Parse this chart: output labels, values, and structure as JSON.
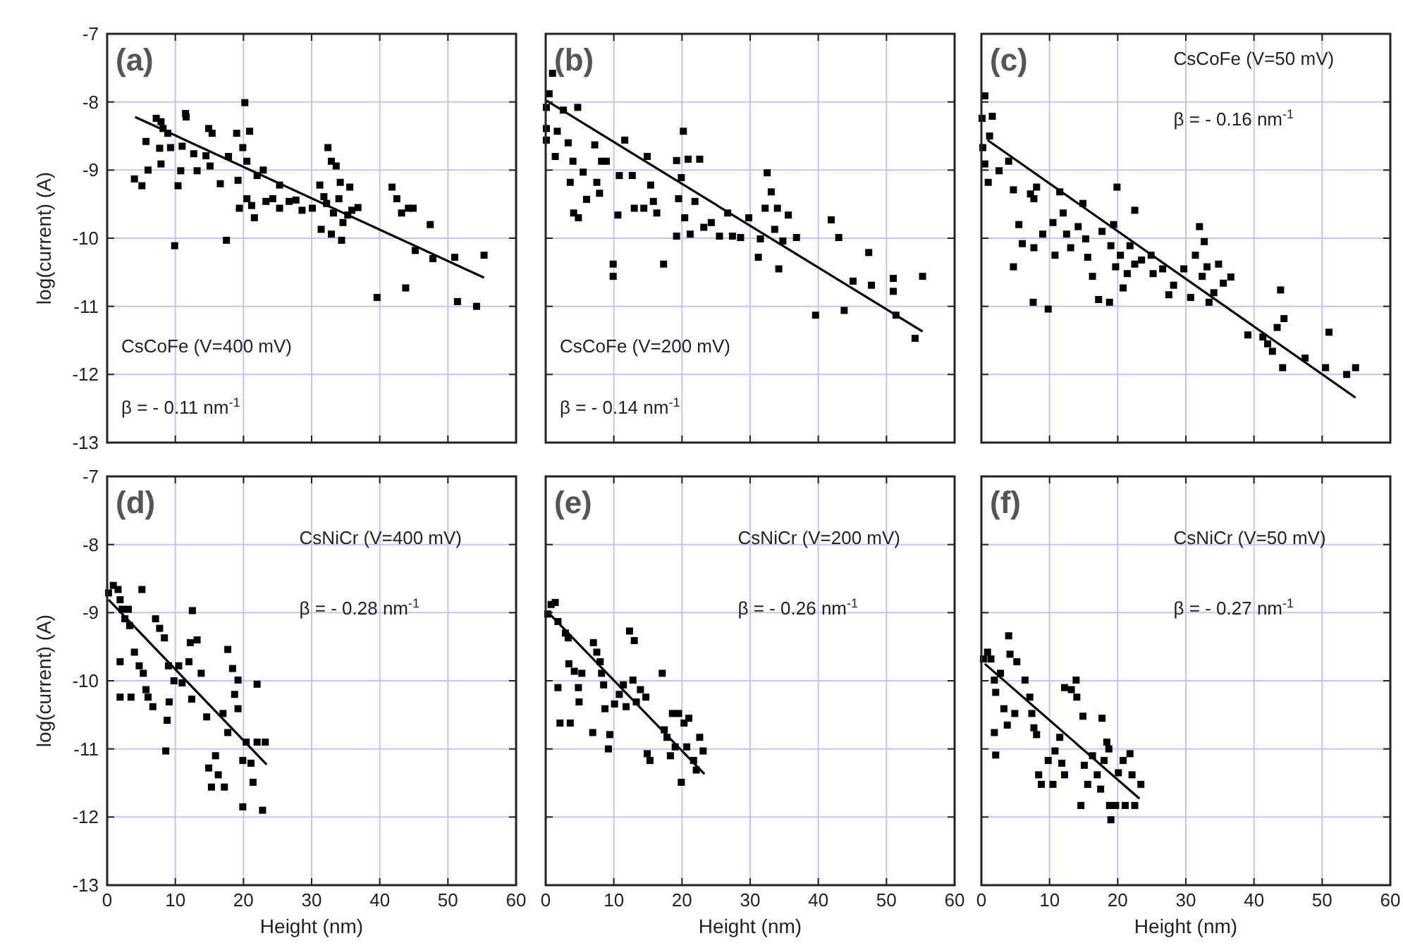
{
  "chart_data": [
    {
      "type": "scatter",
      "ylabel": "log(current) (A)",
      "xlim": [
        0,
        60
      ],
      "ylim": [
        -13,
        -7
      ],
      "xticks": [
        0,
        10,
        20,
        30,
        40,
        50,
        60
      ],
      "yticks": [
        -13,
        -12,
        -11,
        -10,
        -9,
        -8,
        -7
      ],
      "grid": true,
      "marker": "square",
      "tick_labels": "y",
      "annotations": [
        "(a)",
        "CsCoFe (V=400 mV)",
        "β = - 0.11 nm$^{-1}$"
      ],
      "series": [
        {
          "color": "#000000",
          "x": [
            4.0,
            5.1,
            6.0,
            5.7,
            7.2,
            7.9,
            8.2,
            7.7,
            7.9,
            8.9,
            9.3,
            9.9,
            10.4,
            10.8,
            11.0,
            11.5,
            11.6,
            12.7,
            13.2,
            14.9,
            15.4,
            14.5,
            15.1,
            16.6,
            17.5,
            17.8,
            19.0,
            19.2,
            19.4,
            19.9,
            20.2,
            20.5,
            20.9,
            20.5,
            21.2,
            21.6,
            22.0,
            22.9,
            23.3,
            24.3,
            25.3,
            25.3,
            26.7,
            27.7,
            28.6,
            30.1,
            31.2,
            31.4,
            31.8,
            32.2,
            32.4,
            32.9,
            33.6,
            32.9,
            33.2,
            34.0,
            34.2,
            34.4,
            34.6,
            35.3,
            35.6,
            35.9,
            36.8,
            39.6,
            41.8,
            42.5,
            43.2,
            44.2,
            44.9,
            43.8,
            45.2,
            47.4,
            47.8,
            51.0,
            51.4,
            54.2,
            55.3
          ],
          "values": [
            -9.13,
            -9.23,
            -9.0,
            -8.58,
            -8.24,
            -8.29,
            -8.39,
            -8.68,
            -8.91,
            -8.46,
            -8.67,
            -10.11,
            -9.23,
            -9.01,
            -8.65,
            -8.17,
            -8.22,
            -8.76,
            -9.01,
            -8.39,
            -8.46,
            -8.79,
            -8.94,
            -9.2,
            -10.03,
            -8.8,
            -8.46,
            -9.15,
            -9.56,
            -8.67,
            -8.01,
            -8.87,
            -8.43,
            -9.42,
            -9.52,
            -9.7,
            -9.08,
            -9.0,
            -9.46,
            -9.42,
            -9.22,
            -9.56,
            -9.46,
            -9.44,
            -9.59,
            -9.56,
            -9.22,
            -9.87,
            -9.39,
            -9.49,
            -8.67,
            -8.87,
            -8.94,
            -9.94,
            -9.63,
            -9.42,
            -9.18,
            -10.03,
            -9.77,
            -9.66,
            -9.25,
            -9.59,
            -9.55,
            -10.87,
            -9.25,
            -9.42,
            -9.63,
            -9.56,
            -9.56,
            -10.73,
            -10.18,
            -9.8,
            -10.3,
            -10.28,
            -10.93,
            -11.0,
            -10.25
          ]
        },
        {
          "type": "line",
          "marker": "none",
          "color": "#000000",
          "x": [
            4.1,
            55.3
          ],
          "values": [
            -8.22,
            -10.58
          ]
        }
      ]
    },
    {
      "type": "scatter",
      "xlim": [
        0,
        60
      ],
      "ylim": [
        -13,
        -7
      ],
      "xticks": [
        0,
        10,
        20,
        30,
        40,
        50,
        60
      ],
      "yticks": [
        -13,
        -12,
        -11,
        -10,
        -9,
        -8,
        -7
      ],
      "grid": true,
      "marker": "square",
      "tick_labels": false,
      "annotations": [
        "(b)",
        "CsCoFe (V=200 mV)",
        "β = - 0.14 nm$^{-1}$"
      ],
      "series": [
        {
          "color": "#000000",
          "x": [
            1.0,
            0.5,
            0.1,
            0.1,
            0.1,
            1.7,
            1.4,
            2.6,
            3.3,
            3.6,
            4.0,
            4.1,
            4.8,
            4.7,
            5.5,
            6.0,
            7.2,
            7.5,
            7.9,
            8.2,
            8.9,
            9.9,
            9.9,
            10.6,
            10.8,
            11.6,
            12.7,
            13.0,
            14.4,
            14.9,
            15.4,
            15.8,
            16.3,
            17.3,
            19.2,
            19.2,
            19.5,
            19.9,
            20.2,
            20.4,
            20.9,
            21.2,
            21.9,
            22.6,
            23.2,
            24.3,
            25.5,
            26.7,
            27.4,
            28.6,
            29.8,
            31.2,
            31.5,
            32.2,
            32.5,
            33.1,
            33.6,
            34.0,
            34.2,
            34.8,
            35.6,
            36.8,
            39.6,
            41.9,
            43.0,
            43.8,
            45.1,
            47.4,
            47.8,
            51.0,
            51.0,
            51.4,
            54.2,
            55.3
          ],
          "values": [
            -7.58,
            -7.88,
            -8.08,
            -8.39,
            -8.56,
            -8.43,
            -8.8,
            -8.12,
            -8.6,
            -9.18,
            -8.87,
            -9.63,
            -9.7,
            -8.08,
            -9.03,
            -9.43,
            -8.63,
            -9.18,
            -9.34,
            -8.87,
            -8.87,
            -10.38,
            -10.56,
            -9.66,
            -9.08,
            -8.56,
            -9.08,
            -9.56,
            -9.56,
            -8.8,
            -9.22,
            -9.46,
            -9.63,
            -10.38,
            -8.86,
            -9.97,
            -9.42,
            -9.11,
            -8.43,
            -9.7,
            -8.84,
            -9.94,
            -9.46,
            -8.84,
            -9.84,
            -9.77,
            -9.97,
            -9.63,
            -9.97,
            -9.99,
            -9.7,
            -10.28,
            -10.01,
            -9.56,
            -9.04,
            -9.32,
            -9.87,
            -9.56,
            -10.45,
            -10.04,
            -9.66,
            -9.99,
            -11.13,
            -9.73,
            -9.99,
            -11.06,
            -10.63,
            -10.21,
            -10.69,
            -10.59,
            -10.78,
            -11.13,
            -11.47,
            -10.56
          ]
        },
        {
          "type": "line",
          "marker": "none",
          "color": "#000000",
          "x": [
            0.1,
            55.3
          ],
          "values": [
            -7.98,
            -11.37
          ]
        }
      ]
    },
    {
      "type": "scatter",
      "xlim": [
        0,
        60
      ],
      "ylim": [
        -13,
        -7
      ],
      "xticks": [
        0,
        10,
        20,
        30,
        40,
        50,
        60
      ],
      "yticks": [
        -13,
        -12,
        -11,
        -10,
        -9,
        -8,
        -7
      ],
      "grid": true,
      "marker": "square",
      "tick_labels": false,
      "annotations": [
        "(c)",
        "CsCoFe (V=50 mV)",
        "β = - 0.16 nm$^{-1}$"
      ],
      "series": [
        {
          "color": "#000000",
          "x": [
            0.5,
            0.1,
            1.6,
            1.2,
            0.2,
            0.5,
            1.0,
            2.6,
            4.0,
            4.7,
            5.5,
            6.0,
            4.7,
            7.2,
            7.7,
            8.1,
            7.6,
            7.7,
            9.0,
            9.8,
            10.5,
            10.8,
            11.5,
            12.0,
            12.5,
            13.1,
            14.2,
            14.9,
            15.3,
            15.6,
            16.3,
            17.2,
            17.7,
            18.8,
            19.0,
            19.4,
            19.7,
            19.9,
            20.4,
            20.8,
            21.4,
            21.8,
            22.5,
            22.5,
            23.5,
            24.9,
            25.2,
            26.6,
            27.5,
            28.2,
            29.7,
            30.7,
            31.4,
            32.0,
            32.4,
            32.7,
            33.1,
            33.4,
            34.1,
            34.8,
            35.5,
            36.6,
            39.1,
            41.3,
            42.0,
            42.7,
            43.4,
            43.9,
            44.4,
            44.2,
            47.5,
            50.5,
            51.0,
            53.6,
            54.9
          ],
          "values": [
            -7.91,
            -8.24,
            -8.21,
            -8.5,
            -8.67,
            -8.91,
            -9.18,
            -9.01,
            -8.87,
            -9.29,
            -9.8,
            -10.08,
            -10.42,
            -9.35,
            -9.42,
            -9.25,
            -10.94,
            -10.14,
            -9.94,
            -11.04,
            -9.77,
            -10.25,
            -9.32,
            -9.63,
            -9.94,
            -10.14,
            -9.83,
            -9.49,
            -10.01,
            -10.28,
            -10.56,
            -10.9,
            -9.9,
            -10.94,
            -10.11,
            -9.8,
            -10.42,
            -9.25,
            -10.25,
            -10.73,
            -10.52,
            -10.11,
            -9.59,
            -10.38,
            -10.32,
            -10.25,
            -10.52,
            -10.45,
            -10.83,
            -10.69,
            -10.45,
            -10.87,
            -10.25,
            -9.83,
            -10.56,
            -10.05,
            -10.42,
            -10.94,
            -10.8,
            -10.38,
            -10.66,
            -10.57,
            -11.42,
            -11.45,
            -11.55,
            -11.66,
            -11.31,
            -10.76,
            -11.18,
            -11.9,
            -11.76,
            -11.9,
            -11.38,
            -12.0,
            -11.9
          ]
        },
        {
          "type": "line",
          "marker": "none",
          "color": "#000000",
          "x": [
            0.9,
            54.9
          ],
          "values": [
            -8.56,
            -12.34
          ]
        }
      ]
    },
    {
      "type": "scatter",
      "xlabel": "Height (nm)",
      "ylabel": "log(current) (A)",
      "xlim": [
        0,
        60
      ],
      "ylim": [
        -13,
        -7
      ],
      "xticks": [
        0,
        10,
        20,
        30,
        40,
        50,
        60
      ],
      "yticks": [
        -13,
        -12,
        -11,
        -10,
        -9,
        -8,
        -7
      ],
      "grid": true,
      "marker": "square",
      "annotations": [
        "(d)",
        "CsNiCr (V=400 mV)",
        "β = - 0.28 nm$^{-1}$"
      ],
      "series": [
        {
          "color": "#000000",
          "x": [
            0.2,
            0.9,
            1.6,
            5.1,
            1.9,
            2.2,
            3.1,
            2.6,
            3.3,
            1.9,
            1.9,
            3.5,
            4.0,
            4.7,
            5.3,
            5.7,
            6.0,
            6.7,
            7.1,
            7.7,
            8.4,
            9.0,
            9.1,
            8.8,
            8.6,
            9.8,
            10.5,
            11.0,
            12.0,
            12.2,
            12.5,
            12.4,
            13.2,
            13.8,
            14.6,
            14.9,
            15.3,
            15.9,
            16.3,
            17.2,
            17.0,
            17.7,
            17.7,
            18.4,
            18.7,
            19.2,
            19.2,
            19.9,
            19.9,
            20.4,
            21.1,
            21.4,
            22.0,
            22.0,
            23.2,
            22.8
          ],
          "values": [
            -8.71,
            -8.6,
            -8.66,
            -8.66,
            -8.81,
            -8.95,
            -8.95,
            -9.09,
            -9.19,
            -9.72,
            -10.24,
            -10.24,
            -9.58,
            -9.78,
            -9.89,
            -10.13,
            -10.24,
            -10.38,
            -9.09,
            -9.23,
            -9.37,
            -9.78,
            -10.31,
            -10.58,
            -11.03,
            -10.0,
            -9.78,
            -10.03,
            -9.72,
            -9.44,
            -8.97,
            -10.27,
            -9.4,
            -9.89,
            -10.53,
            -11.28,
            -11.56,
            -11.1,
            -11.38,
            -11.56,
            -10.48,
            -9.54,
            -10.76,
            -9.82,
            -10.2,
            -9.99,
            -10.41,
            -11.17,
            -11.85,
            -10.9,
            -11.21,
            -11.49,
            -10.05,
            -10.9,
            -10.9,
            -11.9
          ]
        },
        {
          "type": "line",
          "marker": "none",
          "color": "#000000",
          "x": [
            0.2,
            23.4
          ],
          "values": [
            -8.81,
            -11.23
          ]
        }
      ]
    },
    {
      "type": "scatter",
      "xlabel": "Height (nm)",
      "xlim": [
        0,
        60
      ],
      "ylim": [
        -13,
        -7
      ],
      "xticks": [
        0,
        10,
        20,
        30,
        40,
        50,
        60
      ],
      "yticks": [
        -13,
        -12,
        -11,
        -10,
        -9,
        -8,
        -7
      ],
      "grid": true,
      "marker": "square",
      "tick_labels": "x",
      "annotations": [
        "(e)",
        "CsNiCr (V=200 mV)",
        "β = - 0.26 nm$^{-1}$"
      ],
      "series": [
        {
          "color": "#000000",
          "x": [
            0.3,
            0.8,
            1.4,
            1.8,
            1.8,
            2.1,
            2.9,
            3.3,
            3.4,
            3.6,
            4.2,
            4.8,
            4.9,
            5.3,
            6.9,
            7.0,
            7.5,
            8.0,
            8.2,
            8.5,
            8.7,
            9.2,
            9.4,
            10.1,
            10.8,
            11.4,
            11.8,
            12.3,
            13.0,
            12.8,
            13.3,
            13.9,
            14.7,
            14.9,
            15.3,
            17.1,
            17.4,
            17.8,
            18.3,
            18.6,
            19.0,
            19.5,
            19.9,
            20.3,
            21.0,
            20.7,
            21.7,
            22.1,
            22.6,
            23.1
          ],
          "values": [
            -9.02,
            -8.88,
            -8.85,
            -9.13,
            -10.1,
            -10.62,
            -9.3,
            -9.37,
            -9.75,
            -10.62,
            -9.86,
            -10.1,
            -10.31,
            -9.89,
            -10.76,
            -9.44,
            -9.58,
            -9.72,
            -9.89,
            -10.06,
            -10.41,
            -11.0,
            -10.79,
            -10.34,
            -10.2,
            -10.06,
            -10.38,
            -9.27,
            -9.41,
            -9.99,
            -10.31,
            -10.13,
            -10.24,
            -11.07,
            -11.17,
            -9.89,
            -10.72,
            -10.83,
            -11.1,
            -10.48,
            -10.97,
            -10.48,
            -11.49,
            -10.62,
            -10.55,
            -10.97,
            -11.17,
            -11.31,
            -10.83,
            -11.03
          ]
        },
        {
          "type": "line",
          "marker": "none",
          "color": "#000000",
          "x": [
            0.3,
            23.3
          ],
          "values": [
            -8.99,
            -11.37
          ]
        }
      ]
    },
    {
      "type": "scatter",
      "xlabel": "Height (nm)",
      "xlim": [
        0,
        60
      ],
      "ylim": [
        -13,
        -7
      ],
      "xticks": [
        0,
        10,
        20,
        30,
        40,
        50,
        60
      ],
      "yticks": [
        -13,
        -12,
        -11,
        -10,
        -9,
        -8,
        -7
      ],
      "grid": true,
      "marker": "square",
      "tick_labels": "x",
      "annotations": [
        "(f)",
        "CsNiCr (V=50 mV)",
        "β = - 0.27 nm$^{-1}$"
      ],
      "series": [
        {
          "color": "#000000",
          "x": [
            0.3,
            0.9,
            1.4,
            1.9,
            2.1,
            1.9,
            2.1,
            2.8,
            3.3,
            4.0,
            4.2,
            3.8,
            4.9,
            5.2,
            6.4,
            7.1,
            7.4,
            7.7,
            8.1,
            8.4,
            8.8,
            9.8,
            10.5,
            10.8,
            11.5,
            11.8,
            12.2,
            12.2,
            13.2,
            13.9,
            14.0,
            14.6,
            14.9,
            15.1,
            15.6,
            16.3,
            17.0,
            17.5,
            17.7,
            18.0,
            18.4,
            18.7,
            18.8,
            19.0,
            19.7,
            20.1,
            20.8,
            21.1,
            21.8,
            22.1,
            22.5,
            23.4
          ],
          "values": [
            -9.68,
            -9.58,
            -9.68,
            -9.99,
            -10.17,
            -10.76,
            -11.09,
            -9.89,
            -10.41,
            -9.34,
            -9.61,
            -10.65,
            -10.48,
            -9.72,
            -9.99,
            -10.24,
            -10.48,
            -10.69,
            -10.79,
            -11.38,
            -11.52,
            -11.17,
            -11.52,
            -11.03,
            -10.83,
            -11.21,
            -11.38,
            -10.1,
            -10.13,
            -9.99,
            -10.24,
            -11.83,
            -10.52,
            -11.24,
            -11.52,
            -11.1,
            -11.38,
            -11.59,
            -10.55,
            -11.17,
            -10.9,
            -11.0,
            -11.83,
            -12.04,
            -11.83,
            -11.35,
            -11.17,
            -11.83,
            -11.07,
            -11.38,
            -11.83,
            -11.52
          ]
        },
        {
          "type": "line",
          "marker": "none",
          "color": "#000000",
          "x": [
            0.5,
            23.2
          ],
          "values": [
            -9.75,
            -11.73
          ]
        }
      ]
    }
  ]
}
